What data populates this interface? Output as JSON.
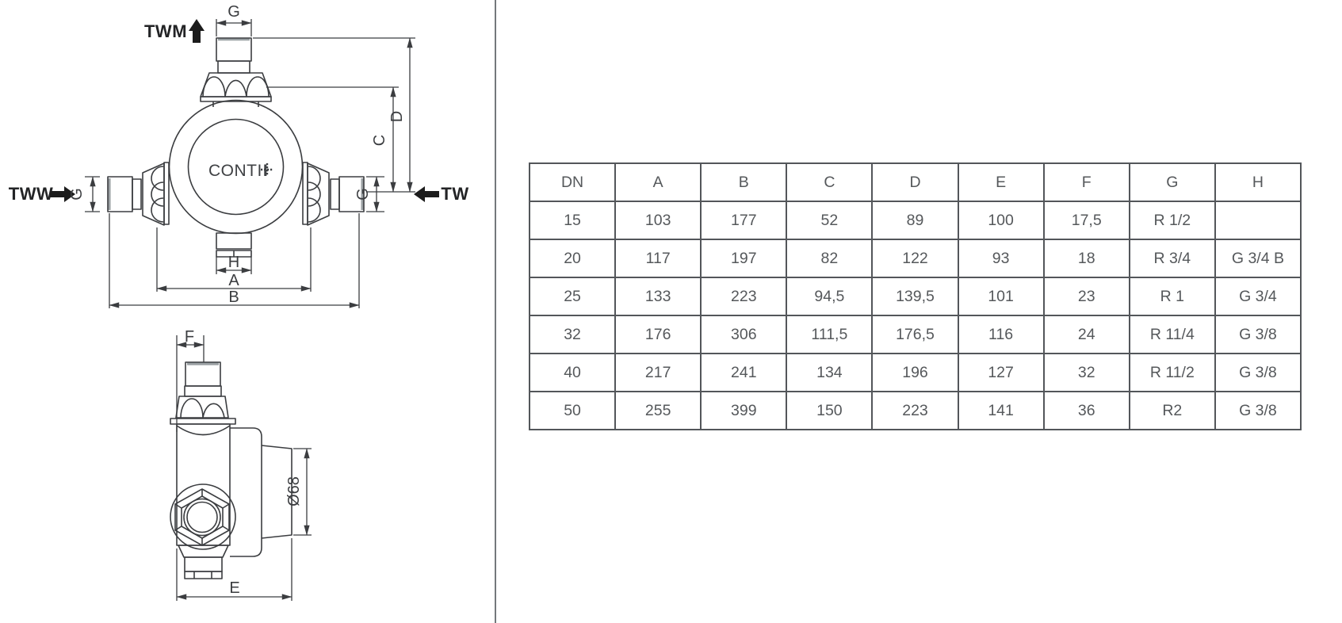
{
  "front_view": {
    "logo": "CONTI",
    "flow_labels": {
      "mixed_out": "TWM",
      "warm_in": "TWW",
      "cold_in": "TW"
    },
    "dim_labels": {
      "g_top": "G",
      "g_left": "G",
      "g_right": "G",
      "c": "C",
      "d": "D",
      "h": "H",
      "a": "A",
      "b": "B"
    }
  },
  "side_view": {
    "dim_labels": {
      "f": "F",
      "diameter": "Ø68",
      "e": "E"
    }
  },
  "table": {
    "headers": [
      "DN",
      "A",
      "B",
      "C",
      "D",
      "E",
      "F",
      "G",
      "H"
    ],
    "rows": [
      [
        "15",
        "103",
        "177",
        "52",
        "89",
        "100",
        "17,5",
        "R 1/2",
        ""
      ],
      [
        "20",
        "117",
        "197",
        "82",
        "122",
        "93",
        "18",
        "R 3/4",
        "G 3/4 B"
      ],
      [
        "25",
        "133",
        "223",
        "94,5",
        "139,5",
        "101",
        "23",
        "R 1",
        "G 3/4"
      ],
      [
        "32",
        "176",
        "306",
        "111,5",
        "176,5",
        "116",
        "24",
        "R 11/4",
        "G 3/8"
      ],
      [
        "40",
        "217",
        "241",
        "134",
        "196",
        "127",
        "32",
        "R 11/2",
        "G 3/8"
      ],
      [
        "50",
        "255",
        "399",
        "150",
        "223",
        "141",
        "36",
        "R2",
        "G 3/8"
      ]
    ]
  },
  "colors": {
    "line": "#3b3d40",
    "table_border": "#53565a",
    "table_text": "#55585b",
    "flow_arrow": "#1c1c1c",
    "divider": "#74787b"
  }
}
